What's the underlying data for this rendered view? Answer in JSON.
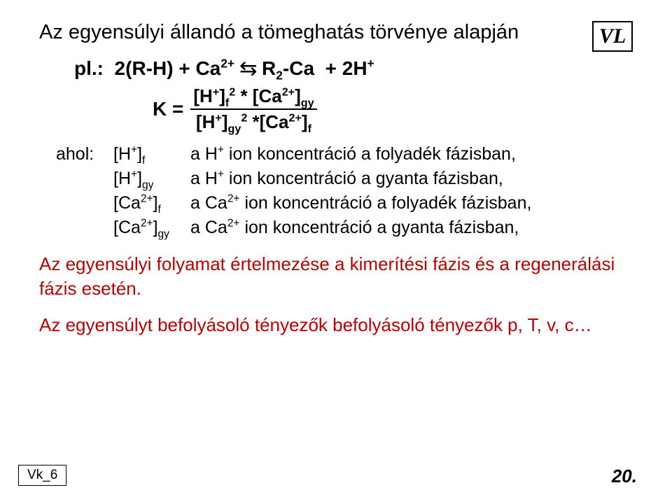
{
  "colors": {
    "text_black": "#000000",
    "text_red": "#bf0000",
    "background": "#ffffff",
    "border": "#000000"
  },
  "typography": {
    "title_fontsize": 29,
    "equation_fontsize": 28,
    "defs_fontsize": 25,
    "para_fontsize": 26,
    "footer_fontsize": 19,
    "pagenum_fontsize": 26,
    "badge_fontsize": 30
  },
  "title": "Az egyensúlyi állandó a tömeghatás törvénye alapján",
  "badge": "VL",
  "equation": {
    "prefix": "pl.:  2(R-H) + Ca",
    "sup1": "2+",
    "arrows": "⇆",
    "mid1": "  R",
    "sub_r": "2",
    "mid2": "-Ca   + 2H",
    "sup2": "+",
    "K_label": "K = ",
    "numerator": "[H⁺]_f^2 * [Ca²⁺]_gy",
    "denominator": "[H⁺]_gy^2 *[Ca²⁺]_f"
  },
  "defs": {
    "label": "ahol:",
    "rows": [
      {
        "sym": "[H⁺]_f",
        "txt": "a H⁺ ion koncentráció a folyadék fázisban,"
      },
      {
        "sym": "[H⁺]_gy",
        "txt": "a H⁺ ion koncentráció a gyanta fázisban,"
      },
      {
        "sym": "[Ca²⁺]_f",
        "txt": "a Ca²⁺ ion koncentráció a folyadék fázisban,"
      },
      {
        "sym": "[Ca²⁺]_gy",
        "txt": "a Ca²⁺ ion koncentráció a gyanta fázisban,"
      }
    ]
  },
  "para1": "Az egyensúlyi folyamat értelmezése a kimerítési fázis és a regenerálási fázis esetén.",
  "para2": "Az egyensúlyt befolyásoló tényezők befolyásoló tényezők p, T, v, c…",
  "footer_left": "Vk_6",
  "footer_right": "20."
}
